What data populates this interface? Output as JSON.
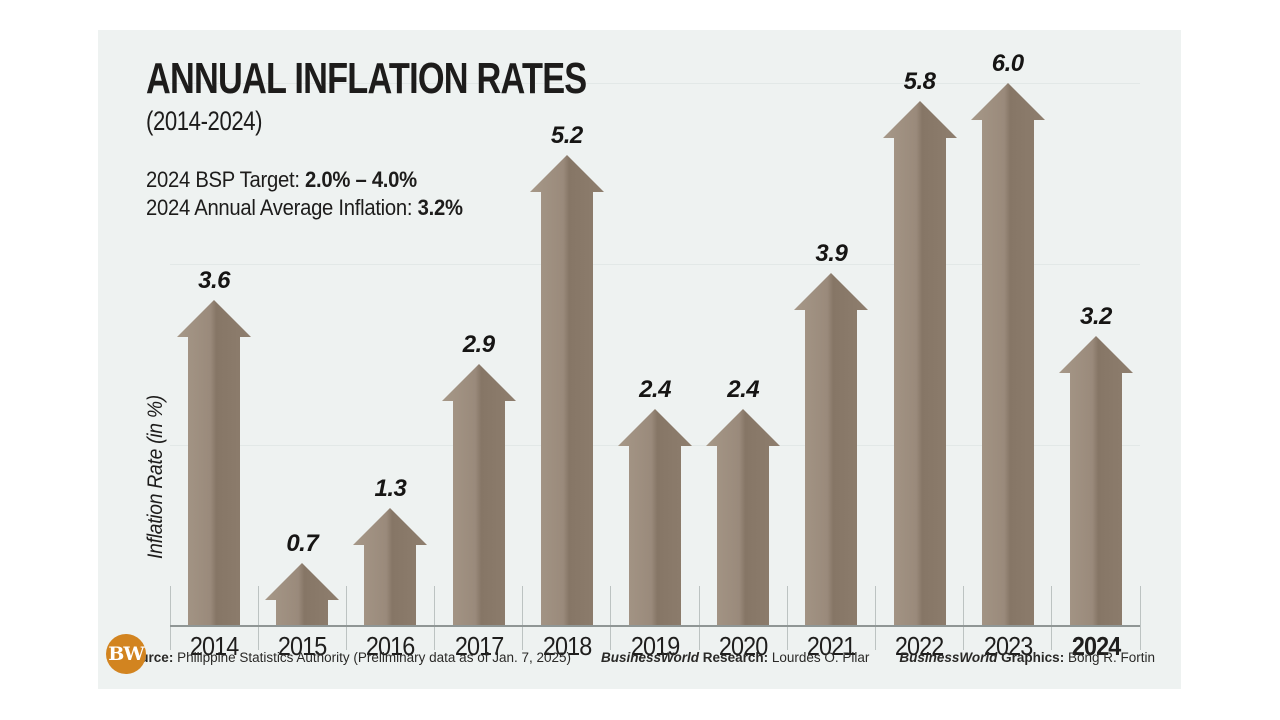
{
  "header": {
    "title": "ANNUAL INFLATION RATES",
    "subtitle": "(2014-2024)",
    "note_line1_label": "2024 BSP Target: ",
    "note_line1_value": "2.0% – 4.0%",
    "note_line2_label": "2024 Annual Average Inflation: ",
    "note_line2_value": "3.2%"
  },
  "chart_data": {
    "type": "bar",
    "bar_style": "upward-arrow",
    "title": "ANNUAL INFLATION RATES (2014-2024)",
    "xlabel": "",
    "ylabel": "Inflation Rate (in %)",
    "categories": [
      "2014",
      "2015",
      "2016",
      "2017",
      "2018",
      "2019",
      "2020",
      "2021",
      "2022",
      "2023",
      "2024"
    ],
    "values": [
      3.6,
      0.7,
      1.3,
      2.9,
      5.2,
      2.4,
      2.4,
      3.9,
      5.8,
      6.0,
      3.2
    ],
    "value_labels": [
      "3.6",
      "0.7",
      "1.3",
      "2.9",
      "5.2",
      "2.4",
      "2.4",
      "3.9",
      "5.8",
      "6.0",
      "3.2"
    ],
    "bold_category": "2024",
    "ylim": [
      0,
      6.5
    ],
    "gridlines_at": [
      2,
      4,
      6
    ],
    "grid": true,
    "legend": false
  },
  "footer": {
    "source_label": "Source:",
    "source_text": " Philippine Statistics Authority (Preliminary data as of Jan. 7, 2025)",
    "research_brand": "BusinessWorld",
    "research_label": " Research:",
    "research_name": " Lourdes O. Pilar",
    "graphics_brand": "BusinessWorld",
    "graphics_label": " Graphics:",
    "graphics_name": " Bong R. Fortin"
  },
  "logo": {
    "text": "BW",
    "color": "#d28420"
  },
  "colors": {
    "card_background": "#eef2f1",
    "arrow_left": "#a69888",
    "arrow_mid_light": "#9a8a7b",
    "arrow_mid_dark": "#867666",
    "arrow_right": "#8e7e6e",
    "gridline": "#e2e8e7",
    "baseline": "#8f9695",
    "tick": "#bcc3c2",
    "logo_orange": "#d28420",
    "text": "#1d1c1b"
  }
}
